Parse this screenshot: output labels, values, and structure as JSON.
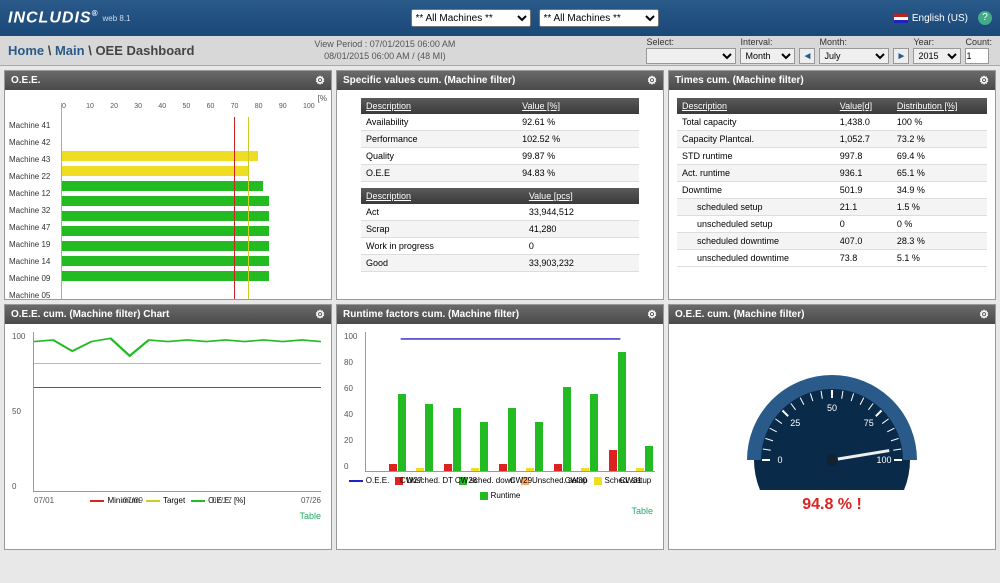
{
  "header": {
    "logo": "INCLUDIS",
    "logo_sub": "web 8.1",
    "machine_select_1": "** All Machines **",
    "machine_select_2": "** All Machines **",
    "language": "English (US)"
  },
  "breadcrumb": {
    "home": "Home",
    "main": "Main",
    "page": "OEE Dashboard",
    "view_period_label": "View Period :",
    "view_period_from": "07/01/2015 06:00 AM",
    "view_period_to": "08/01/2015 06:00 AM / (48 MI)"
  },
  "filters": {
    "select_label": "Select:",
    "interval_label": "Interval:",
    "interval_value": "Month",
    "month_label": "Month:",
    "month_value": "July",
    "year_label": "Year:",
    "year_value": "2015",
    "count_label": "Count:",
    "count_value": "1"
  },
  "panels": {
    "oee": {
      "title": "O.E.E.",
      "unit": "[%",
      "axis": [
        "0",
        "10",
        "20",
        "30",
        "40",
        "50",
        "60",
        "70",
        "80",
        "90",
        "100"
      ],
      "machines": [
        {
          "name": "Machine 41",
          "pct": 0,
          "color": "y"
        },
        {
          "name": "Machine 42",
          "pct": 0,
          "color": "y"
        },
        {
          "name": "Machine 43",
          "pct": 74,
          "color": "y"
        },
        {
          "name": "Machine 22",
          "pct": 70,
          "color": "y"
        },
        {
          "name": "Machine 12",
          "pct": 76,
          "color": "g"
        },
        {
          "name": "Machine 32",
          "pct": 78,
          "color": "g"
        },
        {
          "name": "Machine 47",
          "pct": 78,
          "color": "g"
        },
        {
          "name": "Machine 19",
          "pct": 78,
          "color": "g"
        },
        {
          "name": "Machine 14",
          "pct": 78,
          "color": "g"
        },
        {
          "name": "Machine 09",
          "pct": 78,
          "color": "g"
        },
        {
          "name": "Machine 05",
          "pct": 78,
          "color": "g"
        }
      ],
      "target_line": {
        "pos": 70,
        "color": "#cc2"
      },
      "min_line": {
        "pos": 65,
        "color": "#c22"
      }
    },
    "specific": {
      "title": "Specific values cum. (Machine filter)",
      "t1_headers": [
        "Description",
        "Value [%]"
      ],
      "t1_rows": [
        {
          "d": "Availability",
          "v": "92.61 %"
        },
        {
          "d": "Performance",
          "v": "102.52 %"
        },
        {
          "d": "Quality",
          "v": "99.87 %"
        },
        {
          "d": "O.E.E",
          "v": "94.83 %",
          "hl": true
        }
      ],
      "t2_headers": [
        "Description",
        "Value [pcs]"
      ],
      "t2_rows": [
        {
          "d": "Act",
          "v": "33,944,512"
        },
        {
          "d": "Scrap",
          "v": "41,280"
        },
        {
          "d": "Work in progress",
          "v": "0"
        },
        {
          "d": "Good",
          "v": "33,903,232"
        }
      ]
    },
    "times": {
      "title": "Times cum. (Machine filter)",
      "headers": [
        "Description",
        "Value[d]",
        "Distribution [%]"
      ],
      "rows": [
        {
          "d": "Total capacity",
          "v": "1,438.0",
          "p": "100 %"
        },
        {
          "d": "Capacity Plantcal.",
          "v": "1,052.7",
          "p": "73.2 %"
        },
        {
          "d": "STD runtime",
          "v": "997.8",
          "p": "69.4 %"
        },
        {
          "d": "Act. runtime",
          "v": "936.1",
          "p": "65.1 %"
        },
        {
          "d": "Downtime",
          "v": "501.9",
          "p": "34.9 %"
        },
        {
          "d": "scheduled setup",
          "v": "21.1",
          "p": "1.5 %",
          "indent": true
        },
        {
          "d": "unscheduled setup",
          "v": "0",
          "p": "0 %",
          "indent": true
        },
        {
          "d": "scheduled downtime",
          "v": "407.0",
          "p": "28.3 %",
          "indent": true
        },
        {
          "d": "unscheduled downtime",
          "v": "73.8",
          "p": "5.1 %",
          "indent": true
        }
      ]
    },
    "oee_chart": {
      "title": "O.E.E. cum. (Machine filter) Chart",
      "ylim": [
        0,
        100
      ],
      "ylabel": "[%]",
      "xlabels": [
        "07/01",
        "07/09",
        "07/17",
        "07/26"
      ],
      "series": {
        "min": {
          "color": "#d22",
          "y": 65,
          "label": "Minimum"
        },
        "target": {
          "color": "#cc2",
          "y": 80,
          "label": "Target"
        },
        "oee": {
          "color": "#2b2",
          "label": "O.E.E. [%]",
          "points": [
            94,
            95,
            88,
            94,
            96,
            85,
            95,
            94,
            95,
            94,
            95,
            94,
            95,
            94,
            95,
            94
          ]
        }
      },
      "table_link": "Table"
    },
    "runtime": {
      "title": "Runtime factors cum. (Machine filter)",
      "ylim": [
        0,
        100
      ],
      "ylabel": "[%]",
      "categories": [
        "CW27",
        "CW28",
        "CW29",
        "CW30",
        "CW31"
      ],
      "oee_line": {
        "color": "#22c",
        "points": [
          95,
          95,
          95,
          95,
          95
        ]
      },
      "bars_per_group": [
        {
          "name": "Unsched. DT",
          "color": "#d22"
        },
        {
          "name": "sched. down",
          "color": "#2b2"
        },
        {
          "name": "Unsched. setup",
          "color": "#fa6"
        },
        {
          "name": "Sched. setup",
          "color": "#ed2"
        },
        {
          "name": "Runtime",
          "color": "#2b2"
        }
      ],
      "data": [
        [
          5,
          55,
          0,
          2,
          48
        ],
        [
          5,
          45,
          0,
          2,
          35
        ],
        [
          5,
          45,
          0,
          2,
          35
        ],
        [
          5,
          60,
          0,
          2,
          55
        ],
        [
          15,
          85,
          0,
          2,
          18
        ]
      ],
      "legend": [
        {
          "label": "O.E.E.",
          "type": "line",
          "color": "#22c"
        },
        {
          "label": "Unsched. DT",
          "type": "sq",
          "color": "#d22"
        },
        {
          "label": "sched. down",
          "type": "sq",
          "color": "#2b2"
        },
        {
          "label": "Unsched. setup",
          "type": "sq",
          "color": "#fa6"
        },
        {
          "label": "Sched. setup",
          "type": "sq",
          "color": "#ed2"
        },
        {
          "label": "Runtime",
          "type": "sq",
          "color": "#2b2"
        }
      ],
      "table_link": "Table"
    },
    "gauge": {
      "title": "O.E.E. cum. (Machine filter)",
      "value": 94.8,
      "display": "94.8 % !",
      "ticks": [
        0,
        25,
        50,
        75,
        100
      ],
      "colors": {
        "face": "#0a2a4a",
        "ring": "#2a5a8a",
        "needle": "#eee",
        "text": "#d22"
      }
    }
  }
}
